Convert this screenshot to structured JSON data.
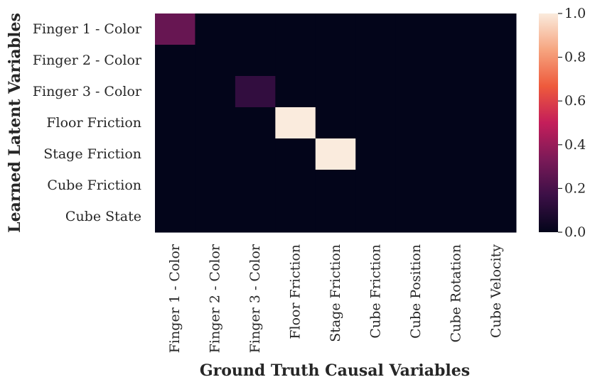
{
  "chart_data": {
    "type": "heatmap",
    "xlabel": "Ground Truth Causal Variables",
    "ylabel": "Learned Latent Variables",
    "x_categories": [
      "Finger 1 - Color",
      "Finger 2 - Color",
      "Finger 3 - Color",
      "Floor Friction",
      "Stage Friction",
      "Cube Friction",
      "Cube Position",
      "Cube Rotation",
      "Cube Velocity"
    ],
    "y_categories": [
      "Finger 1 - Color",
      "Finger 2 - Color",
      "Finger 3 - Color",
      "Floor Friction",
      "Stage Friction",
      "Cube Friction",
      "Cube State"
    ],
    "values": [
      [
        0.28,
        0,
        0,
        0,
        0,
        0,
        0,
        0,
        0
      ],
      [
        0,
        0,
        0,
        0,
        0,
        0,
        0,
        0,
        0
      ],
      [
        0,
        0,
        0.14,
        0,
        0,
        0,
        0,
        0,
        0
      ],
      [
        0,
        0,
        0,
        1.0,
        0,
        0,
        0,
        0,
        0
      ],
      [
        0,
        0,
        0,
        0,
        1.0,
        0,
        0,
        0,
        0
      ],
      [
        0,
        0,
        0,
        0,
        0,
        0,
        0,
        0,
        0
      ],
      [
        0,
        0,
        0,
        0,
        0,
        0,
        0,
        0,
        0
      ]
    ],
    "colorbar": {
      "vmin": 0.0,
      "vmax": 1.0,
      "ticks": [
        "0.0",
        "0.2",
        "0.4",
        "0.6",
        "0.8",
        "1.0"
      ],
      "colormap": [
        "#03051a",
        "#3b0f46",
        "#7b1a58",
        "#c41e5a",
        "#ee5a3c",
        "#f6a47f",
        "#faebdd"
      ]
    },
    "grid": false
  }
}
